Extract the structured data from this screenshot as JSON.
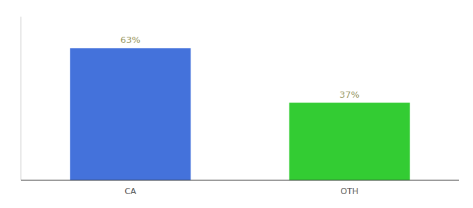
{
  "chart_data": {
    "type": "bar",
    "categories": [
      "CA",
      "OTH"
    ],
    "values": [
      63,
      37
    ],
    "value_labels": [
      "63%",
      "37%"
    ],
    "colors": [
      "#4472db",
      "#33cc33"
    ],
    "ylim": [
      0,
      78
    ],
    "data_labels": true,
    "tick_labels": "x"
  }
}
